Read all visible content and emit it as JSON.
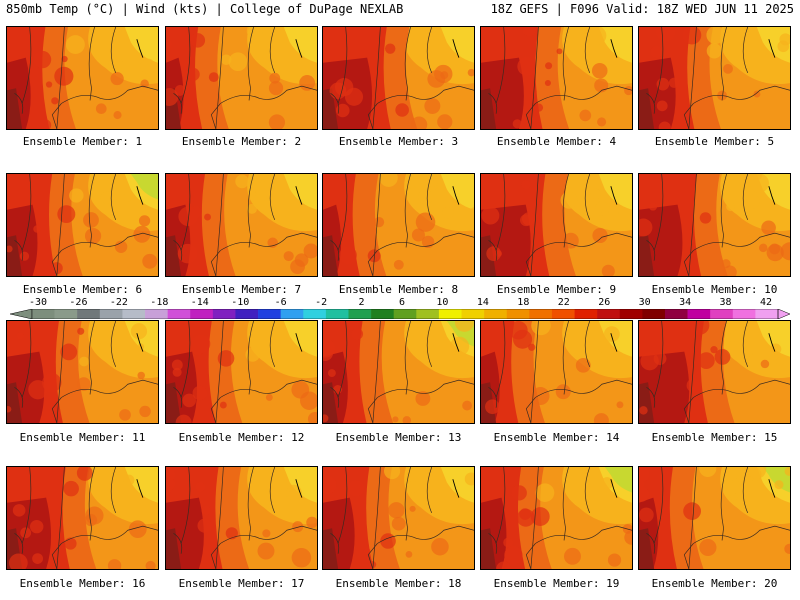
{
  "header": {
    "left": "850mb Temp (°C) | Wind (kts) | College of DuPage NEXLAB",
    "right": "18Z GEFS | F096 Valid: 18Z WED JUN 11 2025"
  },
  "members": [
    "Ensemble Member: 1",
    "Ensemble Member: 2",
    "Ensemble Member: 3",
    "Ensemble Member: 4",
    "Ensemble Member: 5",
    "Ensemble Member: 6",
    "Ensemble Member: 7",
    "Ensemble Member: 8",
    "Ensemble Member: 9",
    "Ensemble Member: 10",
    "Ensemble Member: 11",
    "Ensemble Member: 12",
    "Ensemble Member: 13",
    "Ensemble Member: 14",
    "Ensemble Member: 15",
    "Ensemble Member: 16",
    "Ensemble Member: 17",
    "Ensemble Member: 18",
    "Ensemble Member: 19",
    "Ensemble Member: 20"
  ],
  "colorbar": {
    "ticks": [
      "-30",
      "-26",
      "-22",
      "-18",
      "-14",
      "-10",
      "-6",
      "-2",
      "2",
      "6",
      "10",
      "14",
      "18",
      "22",
      "26",
      "30",
      "34",
      "38",
      "42"
    ],
    "colors": [
      "#7d8e7d",
      "#8a9a8a",
      "#70787a",
      "#9aa2aa",
      "#b6bcc8",
      "#c8a0d8",
      "#d050d8",
      "#c020c0",
      "#8020c0",
      "#4020c0",
      "#2040e0",
      "#30a0f0",
      "#30d0e0",
      "#20c0a0",
      "#20a050",
      "#208020",
      "#60a020",
      "#a0c020",
      "#f0f000",
      "#f0d000",
      "#f0b000",
      "#f09000",
      "#f07000",
      "#f05000",
      "#e02000",
      "#c01010",
      "#a00000",
      "#800000",
      "#900040",
      "#c000a0",
      "#e040c0",
      "#f070e0",
      "#f0a0f0"
    ]
  },
  "panel_colors": {
    "yellow": "#f7d02a",
    "light_orange": "#f7b21c",
    "orange": "#f39618",
    "dark_orange": "#ec6a16",
    "red": "#df3012",
    "dark_red": "#b41812",
    "maroon": "#8a1c16",
    "yellow_green": "#c8d830"
  }
}
